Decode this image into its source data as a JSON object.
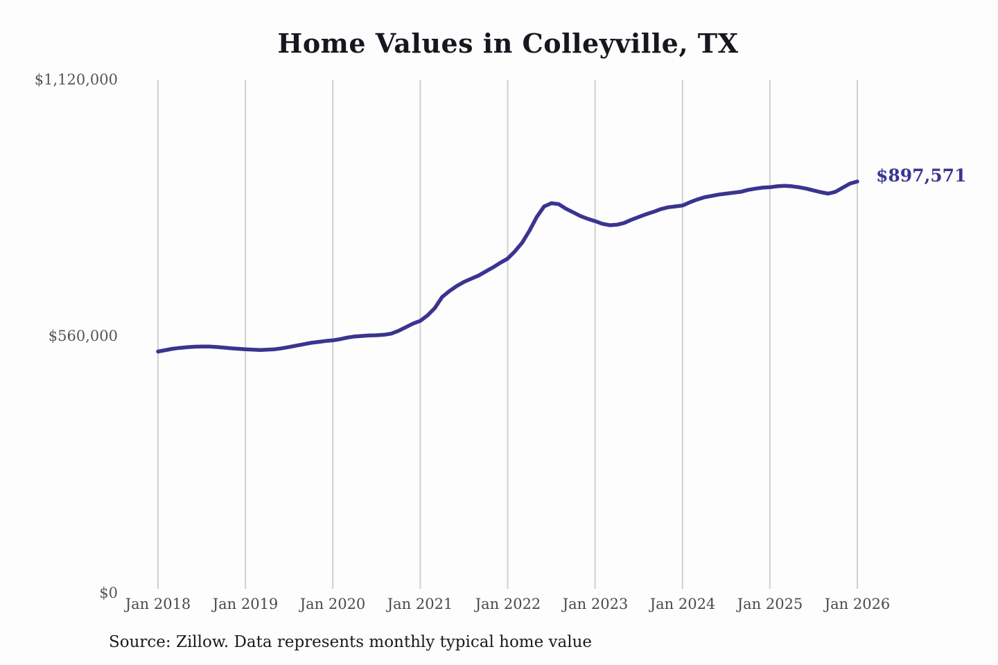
{
  "chart_data": {
    "type": "line",
    "title": "Home Values in Colleyville, TX",
    "xlabel": "",
    "ylabel": "",
    "x_ticks": [
      "Jan 2018",
      "Jan 2019",
      "Jan 2020",
      "Jan 2021",
      "Jan 2022",
      "Jan 2023",
      "Jan 2024",
      "Jan 2025",
      "Jan 2026"
    ],
    "y_ticks": [
      "$0",
      "$560,000",
      "$1,120,000"
    ],
    "ylim": [
      0,
      1120000
    ],
    "x_start": "Jan 2018",
    "x_end": "Jan 2026",
    "frequency": "monthly",
    "grid": "vertical-only",
    "legend": "none",
    "end_label": "$897,571",
    "end_value": 897571,
    "series": [
      {
        "name": "Typical home value",
        "values": [
          526000,
          529000,
          532000,
          534000,
          535500,
          536500,
          537000,
          537000,
          536000,
          534500,
          533000,
          532000,
          531000,
          530000,
          529500,
          530000,
          531000,
          533000,
          536000,
          539000,
          542000,
          545000,
          547000,
          549000,
          550500,
          553000,
          556500,
          559000,
          560000,
          561000,
          561500,
          562500,
          565000,
          571000,
          579000,
          587000,
          593000,
          605000,
          621000,
          645000,
          658000,
          669000,
          678000,
          685000,
          692000,
          701000,
          710000,
          720000,
          729000,
          745000,
          764000,
          790000,
          820000,
          843000,
          850000,
          848000,
          838000,
          830000,
          822000,
          816000,
          811000,
          805000,
          802000,
          803000,
          807000,
          814000,
          820000,
          826000,
          831000,
          837000,
          841000,
          843000,
          845000,
          852000,
          858000,
          863000,
          866000,
          869000,
          871000,
          873000,
          875000,
          879000,
          882000,
          884000,
          885000,
          887000,
          888000,
          887000,
          885000,
          882000,
          878000,
          874000,
          871000,
          875000,
          884000,
          893000,
          897571
        ]
      }
    ]
  },
  "source_note": "Source: Zillow. Data represents monthly typical home value",
  "colors": {
    "accent": "#3A3490",
    "grid": "#CFCFCF",
    "tick_text": "#555555",
    "title_text": "#17171F",
    "source_text": "#1A1A1A"
  }
}
